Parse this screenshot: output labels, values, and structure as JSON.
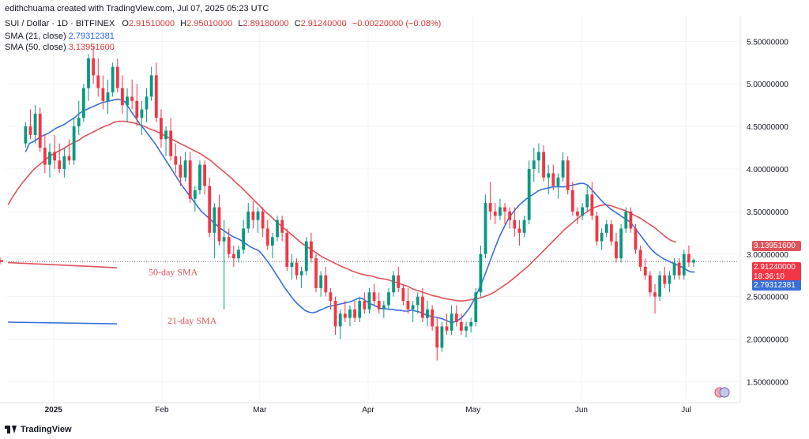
{
  "header": {
    "credit": "edithchuama created with TradingView.com, Jul 07, 2025 05:23 UTC",
    "symbol": "SUI / Dollar · 1D · BITFINEX",
    "ohlc": {
      "o_label": "O",
      "o": "2.91510000",
      "h_label": "H",
      "h": "2.95010000",
      "l_label": "L",
      "l": "2.89180000",
      "c_label": "C",
      "c": "2.91240000",
      "change": "−0.00220000 (−0.08%)"
    },
    "sma21": {
      "label": "SMA (21, close)",
      "value": "2.79312381"
    },
    "sma50": {
      "label": "SMA (50, close)",
      "value": "3.13951600"
    }
  },
  "footer": {
    "brand": "TradingView"
  },
  "colors": {
    "up": "#26a69a",
    "up_body": "#089981",
    "down": "#f23645",
    "sma21": "#3a6fd8",
    "sma50": "#e0525a",
    "grid": "#f0f3fa"
  },
  "price_tags": {
    "sma50": "3.13951600",
    "last": "2.91240000",
    "countdown": "18:36:10",
    "sma21": "2.79312381"
  },
  "chart_data": {
    "type": "candlestick",
    "title": "SUI / Dollar · 1D · BITFINEX",
    "ylim": [
      1.3,
      5.8
    ],
    "y_ticks": [
      "5.50000000",
      "5.00000000",
      "4.50000000",
      "4.00000000",
      "3.50000000",
      "3.00000000",
      "2.50000000",
      "2.00000000",
      "1.50000000"
    ],
    "y_tick_values": [
      5.5,
      5.0,
      4.5,
      4.0,
      3.5,
      3.0,
      2.5,
      2.0,
      1.5
    ],
    "x_labels": [
      "2025",
      "Feb",
      "Mar",
      "Apr",
      "May",
      "Jun",
      "Jul"
    ],
    "x_label_days": [
      8,
      39,
      67,
      98,
      128,
      159,
      189
    ],
    "days_range": [
      -5.5,
      204
    ],
    "annotations": [
      {
        "text": "50-day SMA",
        "color": "#e0525a"
      },
      {
        "text": "21-day SMA",
        "color": "#e0525a"
      }
    ],
    "legend_lines": [
      {
        "name": "50-day SMA",
        "color": "#e0525a",
        "y1": 2.9,
        "y2": 2.84
      },
      {
        "name": "21-day SMA",
        "color": "#3a6fd8",
        "y1": 2.2,
        "y2": 2.18
      }
    ],
    "last_close": 2.9124,
    "sma21_values": [
      4.2,
      4.3,
      4.32,
      4.35,
      4.38,
      4.4,
      4.42,
      4.45,
      4.48,
      4.5,
      4.52,
      4.55,
      4.58,
      4.61,
      4.65,
      4.68,
      4.7,
      4.72,
      4.74,
      4.76,
      4.78,
      4.79,
      4.8,
      4.81,
      4.82,
      4.81,
      4.79,
      4.72,
      4.65,
      4.59,
      4.52,
      4.47,
      4.41,
      4.35,
      4.29,
      4.22,
      4.15,
      4.08,
      4.01,
      3.94,
      3.87,
      3.8,
      3.74,
      3.68,
      3.62,
      3.56,
      3.5,
      3.46,
      3.42,
      3.38,
      3.34,
      3.3,
      3.27,
      3.24,
      3.21,
      3.19,
      3.17,
      3.14,
      3.11,
      3.08,
      3.06,
      3.04,
      2.99,
      2.93,
      2.87,
      2.8,
      2.73,
      2.66,
      2.59,
      2.53,
      2.47,
      2.42,
      2.38,
      2.34,
      2.32,
      2.31,
      2.32,
      2.34,
      2.36,
      2.38,
      2.39,
      2.4,
      2.41,
      2.42,
      2.43,
      2.44,
      2.46,
      2.48,
      2.48,
      2.45,
      2.42,
      2.4,
      2.38,
      2.36,
      2.36,
      2.35,
      2.35,
      2.34,
      2.34,
      2.33,
      2.33,
      2.34,
      2.33,
      2.32,
      2.3,
      2.28,
      2.27,
      2.26,
      2.25,
      2.24,
      2.22,
      2.2,
      2.2,
      2.22,
      2.25,
      2.3,
      2.36,
      2.44,
      2.53,
      2.63,
      2.74,
      2.86,
      2.98,
      3.1,
      3.21,
      3.3,
      3.39,
      3.46,
      3.52,
      3.57,
      3.61,
      3.65,
      3.68,
      3.71,
      3.74,
      3.76,
      3.77,
      3.78,
      3.79,
      3.79,
      3.79,
      3.79,
      3.8,
      3.81,
      3.82,
      3.83,
      3.83,
      3.81,
      3.76,
      3.71,
      3.66,
      3.61,
      3.57,
      3.53,
      3.5,
      3.47,
      3.44,
      3.41,
      3.38,
      3.33,
      3.27,
      3.21,
      3.15,
      3.09,
      3.04,
      3.0,
      2.97,
      2.94,
      2.92,
      2.9,
      2.88,
      2.86,
      2.84,
      2.81,
      2.79,
      2.79
    ],
    "sma21_start_day": 0,
    "sma50_values": [
      3.58,
      3.68,
      3.77,
      3.85,
      3.92,
      3.99,
      4.04,
      4.09,
      4.14,
      4.18,
      4.21,
      4.24,
      4.28,
      4.31,
      4.34,
      4.38,
      4.41,
      4.44,
      4.47,
      4.5,
      4.52,
      4.55,
      4.56,
      4.56,
      4.55,
      4.54,
      4.52,
      4.5,
      4.47,
      4.45,
      4.42,
      4.39,
      4.36,
      4.33,
      4.3,
      4.27,
      4.24,
      4.21,
      4.18,
      4.14,
      4.1,
      4.05,
      4.0,
      3.95,
      3.9,
      3.84,
      3.79,
      3.73,
      3.67,
      3.61,
      3.55,
      3.49,
      3.44,
      3.38,
      3.33,
      3.28,
      3.23,
      3.18,
      3.13,
      3.09,
      3.05,
      3.01,
      2.97,
      2.94,
      2.91,
      2.88,
      2.85,
      2.83,
      2.8,
      2.78,
      2.76,
      2.75,
      2.74,
      2.72,
      2.71,
      2.7,
      2.68,
      2.66,
      2.64,
      2.62,
      2.59,
      2.57,
      2.55,
      2.53,
      2.51,
      2.5,
      2.48,
      2.47,
      2.46,
      2.45,
      2.45,
      2.46,
      2.47,
      2.48,
      2.5,
      2.52,
      2.55,
      2.59,
      2.63,
      2.67,
      2.72,
      2.77,
      2.82,
      2.87,
      2.93,
      2.99,
      3.05,
      3.11,
      3.17,
      3.23,
      3.29,
      3.34,
      3.39,
      3.44,
      3.48,
      3.52,
      3.55,
      3.57,
      3.58,
      3.57,
      3.55,
      3.53,
      3.51,
      3.48,
      3.45,
      3.42,
      3.38,
      3.34,
      3.3,
      3.25,
      3.2,
      3.16,
      3.14
    ],
    "sma50_start_day": -5,
    "candles": [
      [
        4.3,
        4.55,
        4.25,
        4.5
      ],
      [
        4.5,
        4.7,
        4.35,
        4.4
      ],
      [
        4.4,
        4.75,
        4.3,
        4.65
      ],
      [
        4.65,
        4.72,
        4.2,
        4.25
      ],
      [
        4.25,
        4.4,
        3.95,
        4.05
      ],
      [
        4.05,
        4.3,
        3.9,
        4.2
      ],
      [
        4.2,
        4.4,
        4.0,
        4.1
      ],
      [
        4.1,
        4.3,
        3.95,
        4.0
      ],
      [
        4.0,
        4.25,
        3.9,
        4.15
      ],
      [
        4.15,
        4.35,
        4.05,
        4.1
      ],
      [
        4.1,
        4.6,
        4.05,
        4.5
      ],
      [
        4.5,
        4.8,
        4.4,
        4.6
      ],
      [
        4.6,
        5.0,
        4.55,
        4.95
      ],
      [
        4.95,
        5.35,
        4.8,
        5.3
      ],
      [
        5.3,
        5.45,
        5.0,
        5.1
      ],
      [
        5.1,
        5.3,
        4.85,
        4.95
      ],
      [
        4.95,
        5.1,
        4.7,
        4.8
      ],
      [
        4.8,
        5.05,
        4.65,
        4.9
      ],
      [
        4.9,
        5.25,
        4.85,
        5.2
      ],
      [
        5.2,
        5.3,
        4.9,
        4.95
      ],
      [
        4.95,
        5.1,
        4.65,
        4.75
      ],
      [
        4.75,
        4.95,
        4.55,
        4.85
      ],
      [
        4.85,
        5.05,
        4.7,
        4.8
      ],
      [
        4.8,
        5.0,
        4.5,
        4.6
      ],
      [
        4.6,
        4.8,
        4.4,
        4.7
      ],
      [
        4.7,
        4.95,
        4.55,
        4.85
      ],
      [
        4.85,
        5.2,
        4.8,
        5.1
      ],
      [
        5.1,
        5.25,
        4.55,
        4.6
      ],
      [
        4.6,
        4.7,
        4.25,
        4.35
      ],
      [
        4.35,
        4.5,
        4.15,
        4.45
      ],
      [
        4.45,
        4.6,
        4.1,
        4.15
      ],
      [
        4.15,
        4.3,
        3.95,
        4.05
      ],
      [
        4.05,
        4.15,
        3.8,
        3.9
      ],
      [
        3.9,
        4.2,
        3.85,
        4.1
      ],
      [
        4.1,
        4.2,
        3.6,
        3.65
      ],
      [
        3.65,
        3.8,
        3.5,
        3.75
      ],
      [
        3.75,
        4.1,
        3.7,
        4.05
      ],
      [
        4.05,
        4.1,
        3.7,
        3.8
      ],
      [
        3.8,
        3.9,
        3.2,
        3.25
      ],
      [
        3.25,
        3.6,
        2.95,
        3.55
      ],
      [
        3.55,
        3.7,
        3.1,
        3.15
      ],
      [
        3.15,
        3.4,
        2.35,
        3.2
      ],
      [
        3.2,
        3.3,
        2.95,
        3.0
      ],
      [
        3.0,
        3.1,
        2.85,
        2.95
      ],
      [
        2.95,
        3.1,
        2.9,
        3.05
      ],
      [
        3.05,
        3.4,
        3.0,
        3.3
      ],
      [
        3.3,
        3.6,
        3.25,
        3.5
      ],
      [
        3.5,
        3.62,
        3.3,
        3.4
      ],
      [
        3.4,
        3.55,
        3.25,
        3.5
      ],
      [
        3.5,
        3.55,
        3.2,
        3.3
      ],
      [
        3.3,
        3.4,
        3.05,
        3.1
      ],
      [
        3.1,
        3.25,
        2.95,
        3.2
      ],
      [
        3.2,
        3.45,
        3.15,
        3.4
      ],
      [
        3.4,
        3.45,
        3.15,
        3.25
      ],
      [
        3.25,
        3.3,
        2.8,
        2.85
      ],
      [
        2.85,
        3.0,
        2.7,
        2.9
      ],
      [
        2.9,
        2.95,
        2.7,
        2.75
      ],
      [
        2.75,
        2.85,
        2.6,
        2.8
      ],
      [
        2.8,
        3.2,
        2.75,
        3.15
      ],
      [
        3.15,
        3.25,
        2.9,
        2.95
      ],
      [
        2.95,
        3.0,
        2.55,
        2.6
      ],
      [
        2.6,
        2.8,
        2.5,
        2.75
      ],
      [
        2.75,
        2.85,
        2.5,
        2.55
      ],
      [
        2.55,
        2.6,
        2.35,
        2.45
      ],
      [
        2.45,
        2.5,
        2.05,
        2.15
      ],
      [
        2.15,
        2.35,
        2.0,
        2.3
      ],
      [
        2.3,
        2.45,
        2.2,
        2.25
      ],
      [
        2.25,
        2.4,
        2.15,
        2.35
      ],
      [
        2.35,
        2.45,
        2.2,
        2.25
      ],
      [
        2.25,
        2.5,
        2.2,
        2.45
      ],
      [
        2.45,
        2.55,
        2.3,
        2.35
      ],
      [
        2.35,
        2.6,
        2.3,
        2.55
      ],
      [
        2.55,
        2.65,
        2.4,
        2.45
      ],
      [
        2.45,
        2.55,
        2.3,
        2.35
      ],
      [
        2.35,
        2.45,
        2.25,
        2.4
      ],
      [
        2.4,
        2.6,
        2.35,
        2.55
      ],
      [
        2.55,
        2.8,
        2.5,
        2.75
      ],
      [
        2.75,
        2.85,
        2.55,
        2.6
      ],
      [
        2.6,
        2.65,
        2.4,
        2.45
      ],
      [
        2.45,
        2.6,
        2.3,
        2.35
      ],
      [
        2.35,
        2.45,
        2.2,
        2.4
      ],
      [
        2.4,
        2.55,
        2.3,
        2.5
      ],
      [
        2.5,
        2.6,
        2.2,
        2.25
      ],
      [
        2.25,
        2.45,
        2.15,
        2.35
      ],
      [
        2.35,
        2.4,
        2.1,
        2.15
      ],
      [
        2.15,
        2.25,
        1.75,
        1.9
      ],
      [
        1.9,
        2.2,
        1.85,
        2.15
      ],
      [
        2.15,
        2.3,
        2.05,
        2.1
      ],
      [
        2.1,
        2.4,
        2.05,
        2.3
      ],
      [
        2.3,
        2.4,
        2.15,
        2.2
      ],
      [
        2.2,
        2.3,
        2.05,
        2.1
      ],
      [
        2.1,
        2.2,
        2.02,
        2.15
      ],
      [
        2.15,
        2.25,
        2.08,
        2.2
      ],
      [
        2.2,
        2.6,
        2.15,
        2.55
      ],
      [
        2.55,
        3.1,
        2.5,
        3.0
      ],
      [
        3.0,
        3.7,
        2.95,
        3.6
      ],
      [
        3.6,
        3.85,
        3.4,
        3.5
      ],
      [
        3.5,
        3.6,
        3.35,
        3.45
      ],
      [
        3.45,
        3.65,
        3.4,
        3.55
      ],
      [
        3.55,
        3.6,
        3.35,
        3.5
      ],
      [
        3.5,
        3.55,
        3.3,
        3.4
      ],
      [
        3.4,
        3.55,
        3.2,
        3.3
      ],
      [
        3.3,
        3.4,
        3.1,
        3.25
      ],
      [
        3.25,
        3.45,
        3.2,
        3.4
      ],
      [
        3.4,
        4.1,
        3.35,
        4.0
      ],
      [
        4.0,
        4.25,
        3.85,
        4.1
      ],
      [
        4.1,
        4.3,
        3.95,
        4.2
      ],
      [
        4.2,
        4.28,
        3.85,
        3.9
      ],
      [
        3.9,
        4.05,
        3.7,
        3.95
      ],
      [
        3.95,
        4.05,
        3.75,
        3.8
      ],
      [
        3.8,
        3.95,
        3.65,
        3.9
      ],
      [
        3.9,
        4.2,
        3.85,
        4.1
      ],
      [
        4.1,
        4.15,
        3.7,
        3.75
      ],
      [
        3.75,
        3.85,
        3.45,
        3.5
      ],
      [
        3.5,
        3.55,
        3.35,
        3.45
      ],
      [
        3.45,
        3.6,
        3.4,
        3.55
      ],
      [
        3.55,
        3.8,
        3.5,
        3.7
      ],
      [
        3.7,
        3.85,
        3.4,
        3.45
      ],
      [
        3.45,
        3.5,
        3.1,
        3.15
      ],
      [
        3.15,
        3.3,
        3.05,
        3.25
      ],
      [
        3.25,
        3.4,
        3.2,
        3.35
      ],
      [
        3.35,
        3.4,
        3.1,
        3.15
      ],
      [
        3.15,
        3.25,
        2.9,
        2.95
      ],
      [
        2.95,
        3.35,
        2.9,
        3.3
      ],
      [
        3.3,
        3.55,
        3.25,
        3.5
      ],
      [
        3.5,
        3.55,
        3.25,
        3.3
      ],
      [
        3.3,
        3.35,
        3.0,
        3.05
      ],
      [
        3.05,
        3.1,
        2.8,
        2.85
      ],
      [
        2.85,
        2.95,
        2.7,
        2.75
      ],
      [
        2.75,
        2.8,
        2.5,
        2.55
      ],
      [
        2.55,
        2.65,
        2.3,
        2.5
      ],
      [
        2.5,
        2.8,
        2.45,
        2.75
      ],
      [
        2.75,
        2.85,
        2.6,
        2.65
      ],
      [
        2.65,
        2.8,
        2.55,
        2.75
      ],
      [
        2.75,
        2.95,
        2.7,
        2.9
      ],
      [
        2.9,
        2.95,
        2.7,
        2.75
      ],
      [
        2.75,
        3.05,
        2.7,
        3.0
      ],
      [
        3.0,
        3.1,
        2.85,
        2.9
      ],
      [
        2.9,
        2.95,
        2.85,
        2.93
      ],
      [
        2.93,
        2.96,
        2.88,
        2.91
      ],
      [
        2.9151,
        2.9501,
        2.8918,
        2.9124
      ]
    ],
    "candle_days": [
      0,
      1,
      2,
      3,
      4,
      5,
      6,
      7,
      8,
      9,
      10,
      11,
      12,
      13,
      14,
      15,
      16,
      17,
      18,
      19,
      20,
      21,
      22,
      23,
      24,
      25,
      26,
      27,
      28,
      29,
      30,
      31,
      32,
      33,
      34,
      35,
      36,
      37,
      38,
      39,
      40,
      41,
      42,
      43,
      44,
      45,
      46,
      47,
      48,
      49,
      50,
      51,
      52,
      53,
      54,
      55,
      56,
      57,
      58,
      59,
      60,
      61,
      62,
      63,
      64,
      65,
      66,
      67,
      68,
      69,
      70,
      71,
      72,
      73,
      74,
      75,
      76,
      77,
      78,
      79,
      80,
      81,
      82,
      83,
      84,
      85,
      86,
      87,
      88,
      89,
      90,
      91,
      92,
      93,
      94,
      95,
      96,
      97,
      98,
      99,
      100,
      101,
      102,
      103,
      104,
      105,
      106,
      107,
      108,
      109,
      110,
      111,
      112,
      113,
      114,
      115,
      116,
      117,
      118,
      119,
      120,
      121,
      122,
      123,
      124,
      125,
      126,
      127,
      128,
      129,
      130,
      131,
      132,
      133,
      134,
      135,
      136,
      137,
      138
    ],
    "candle_day_scale": 1.385
  }
}
